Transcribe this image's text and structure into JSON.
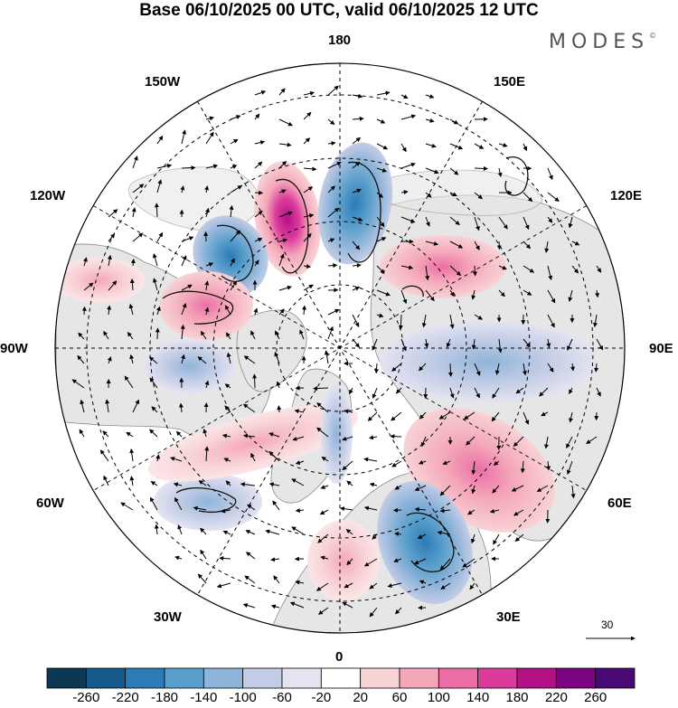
{
  "title": "Base 06/10/2025 00 UTC, valid 06/10/2025 12 UTC",
  "brand": "MODES",
  "brand_mark": "©",
  "longitude_labels": {
    "n180": "180",
    "w150": "150W",
    "e150": "150E",
    "w120": "120W",
    "e120": "120E",
    "w90": "90W",
    "e90": "90E",
    "w60": "60W",
    "e60": "60E",
    "w30": "30W",
    "e30": "30E",
    "s0": "0"
  },
  "reference_vector": {
    "label": "30",
    "icon": "right-arrow-icon"
  },
  "colorbar": {
    "ticks": [
      "-260",
      "-220",
      "-180",
      "-140",
      "-100",
      "-60",
      "-20",
      "20",
      "60",
      "100",
      "140",
      "180",
      "220",
      "260"
    ],
    "colors": [
      "#0b3954",
      "#14598a",
      "#2c7bb6",
      "#5a9fcc",
      "#8fb4d9",
      "#c3cde6",
      "#e4e4f1",
      "#ffffff",
      "#f8d3d6",
      "#f4a7b9",
      "#ec6ea6",
      "#db3b9b",
      "#b31185",
      "#7b0480",
      "#4a0a74"
    ]
  },
  "colors": {
    "land": "#e6e6e6",
    "coast": "#777777",
    "grid": "#000000"
  }
}
